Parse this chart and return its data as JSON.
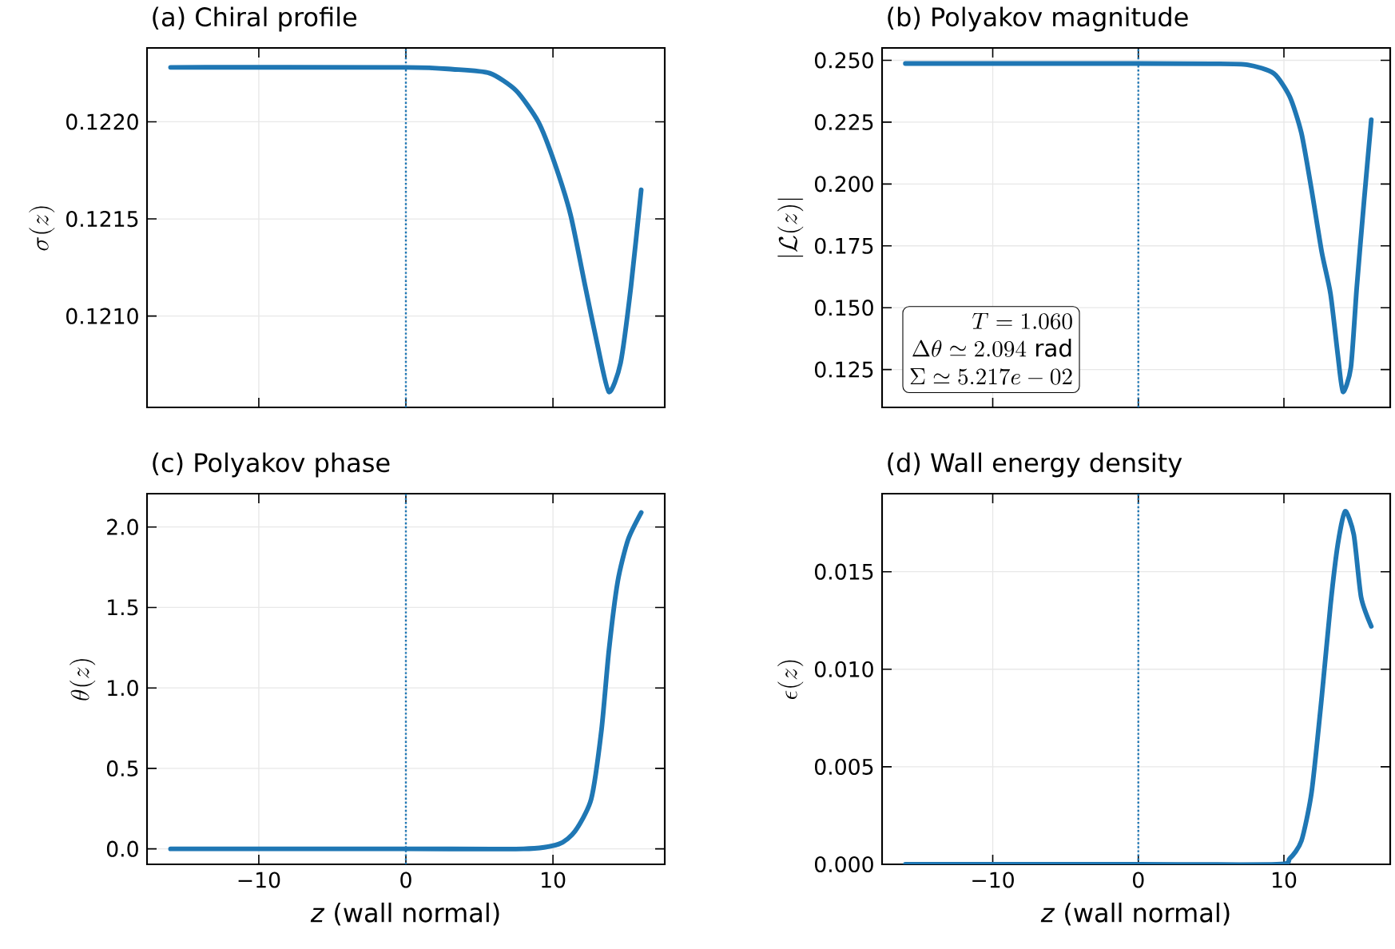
{
  "chart_data": [
    {
      "type": "line",
      "title": "(a) Chiral profile",
      "ylabel": "\\sigma(z)",
      "tick_labels": "y",
      "grid": true,
      "xlim": [
        -17.6,
        17.6
      ],
      "ylim": [
        0.12053,
        0.12238
      ],
      "xticks": [
        {
          "value": -10,
          "label": null
        },
        {
          "value": 0,
          "label": null
        },
        {
          "value": 10,
          "label": null
        }
      ],
      "yticks": [
        {
          "value": 0.121,
          "label": "0.1210"
        },
        0.1215,
        {
          "value": 0.122,
          "label": "0.1220"
        }
      ],
      "x": [
        -16,
        0,
        3.2,
        5.7,
        7.5,
        9.0,
        10.1,
        11.2,
        12.2,
        13.0,
        13.8,
        14.6,
        15.3,
        16
      ],
      "series": [
        {
          "color": "#1f77b4",
          "values": [
            0.12228,
            0.12228,
            0.12227,
            0.12225,
            0.12216,
            0.122,
            0.12179,
            0.12152,
            0.12115,
            0.12086,
            0.12061,
            0.12076,
            0.12115,
            0.12165
          ]
        }
      ],
      "ref_lines": [
        {
          "axis": "x",
          "value": 0,
          "color": "#1f77b4",
          "line_style": "dotted"
        }
      ]
    },
    {
      "type": "line",
      "title": "(b) Polyakov magnitude",
      "ylabel": "|\\mathcal{L}(z)|",
      "tick_labels": "y",
      "grid": true,
      "xlim": [
        -17.6,
        17.3
      ],
      "ylim": [
        0.1097,
        0.255
      ],
      "xticks": [
        {
          "value": -10,
          "label": null
        },
        {
          "value": 0,
          "label": null
        },
        {
          "value": 10,
          "label": null
        }
      ],
      "yticks": [
        0.125,
        {
          "value": 0.15,
          "label": "0.150"
        },
        0.175,
        {
          "value": 0.2,
          "label": "0.200"
        },
        0.225,
        {
          "value": 0.25,
          "label": "0.250"
        }
      ],
      "x": [
        -16,
        0,
        5,
        7.5,
        9.3,
        10.4,
        11.2,
        11.9,
        12.6,
        13.2,
        13.7,
        14.05,
        14.6,
        15.0,
        15.5,
        16
      ],
      "series": [
        {
          "color": "#1f77b4",
          "values": [
            0.2487,
            0.2487,
            0.2486,
            0.2482,
            0.2447,
            0.2353,
            0.2206,
            0.1976,
            0.1724,
            0.1556,
            0.131,
            0.116,
            0.126,
            0.158,
            0.193,
            0.226
          ]
        }
      ],
      "ref_lines": [
        {
          "axis": "x",
          "value": 0,
          "color": "#1f77b4",
          "line_style": "dotted"
        }
      ],
      "annotations": [
        "T = 1.060",
        "\\Delta\\theta \\simeq 2.094\\ \\mathrm{rad}",
        "\\Sigma \\simeq 5.217e-02"
      ]
    },
    {
      "type": "line",
      "title": "(c) Polyakov phase",
      "xlabel": "*z* (wall normal)",
      "ylabel": "\\theta(z)",
      "grid": true,
      "xlim": [
        -17.6,
        17.6
      ],
      "ylim": [
        -0.096,
        2.207
      ],
      "xticks": [
        {
          "value": -10,
          "label": "−10"
        },
        0,
        10
      ],
      "yticks": [
        {
          "value": 0,
          "label": "0.0"
        },
        0.5,
        {
          "value": 1,
          "label": "1.0"
        },
        1.5,
        {
          "value": 2,
          "label": "2.0"
        }
      ],
      "x": [
        -16,
        0,
        8,
        10.4,
        11.5,
        12.6,
        13.3,
        13.8,
        14.4,
        15.1,
        16
      ],
      "series": [
        {
          "color": "#1f77b4",
          "values": [
            0,
            0,
            0.0,
            0.03,
            0.11,
            0.31,
            0.74,
            1.23,
            1.66,
            1.92,
            2.09
          ]
        }
      ],
      "ref_lines": [
        {
          "axis": "x",
          "value": 0,
          "color": "#1f77b4",
          "line_style": "dotted"
        }
      ]
    },
    {
      "type": "line",
      "title": "(d) Wall energy density",
      "xlabel": "*z* (wall normal)",
      "ylabel": "\\epsilon(z)",
      "grid": true,
      "xlim": [
        -17.6,
        17.3
      ],
      "ylim": [
        0,
        0.019
      ],
      "xticks": [
        {
          "value": -10,
          "label": "−10"
        },
        0,
        10
      ],
      "yticks": [
        {
          "value": 0,
          "label": "0.000"
        },
        {
          "value": 0.005,
          "label": "0.005"
        },
        {
          "value": 0.01,
          "label": "0.010"
        },
        {
          "value": 0.015,
          "label": "0.015"
        }
      ],
      "x": [
        -16,
        0,
        9.5,
        10.4,
        11.2,
        11.9,
        12.6,
        13.2,
        13.7,
        14.2,
        14.8,
        15.3,
        16
      ],
      "series": [
        {
          "color": "#1f77b4",
          "values": [
            0,
            0,
            0,
            0.0003,
            0.0012,
            0.0037,
            0.0086,
            0.0133,
            0.0164,
            0.0181,
            0.0169,
            0.0137,
            0.0122
          ]
        }
      ],
      "ref_lines": [
        {
          "axis": "x",
          "value": 0,
          "color": "#1f77b4",
          "line_style": "dotted"
        }
      ]
    }
  ]
}
